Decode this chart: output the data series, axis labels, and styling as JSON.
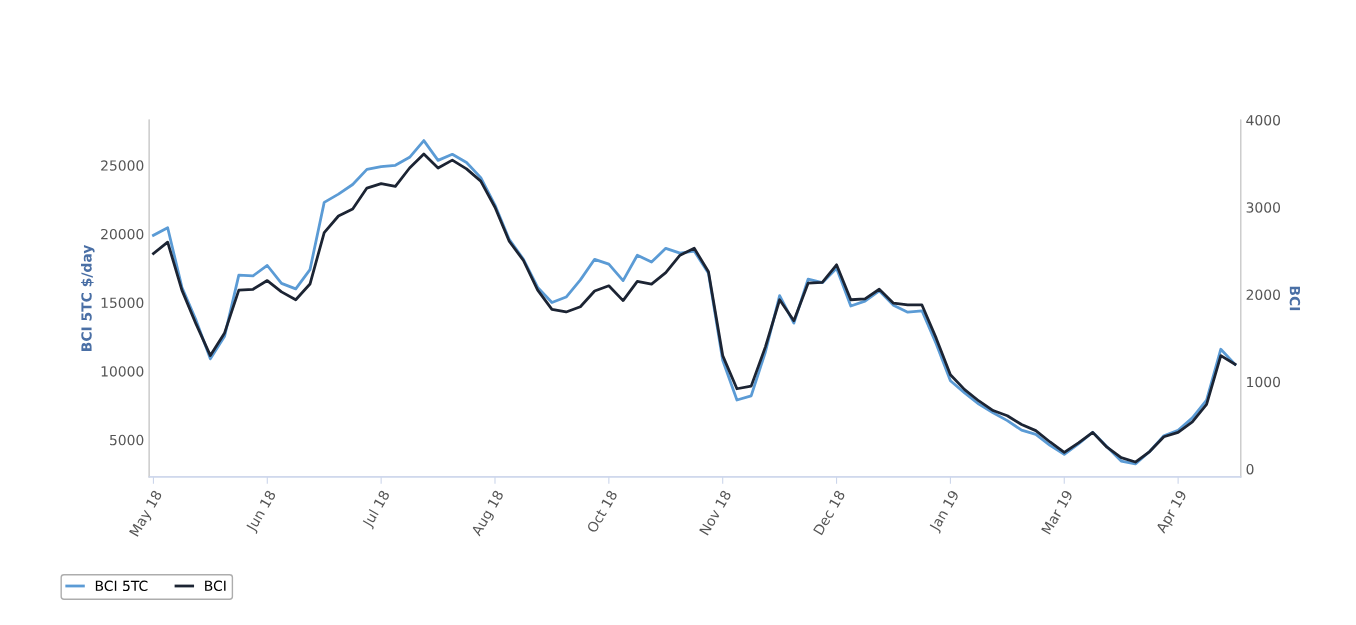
{
  "chart_data": {
    "type": "line",
    "ylabel": "BCI 5TC $/day",
    "y2label": "BCI",
    "categories": [
      "May 18",
      null,
      null,
      null,
      null,
      null,
      null,
      null,
      "Jun 18",
      null,
      null,
      null,
      null,
      null,
      null,
      null,
      "Jul 18",
      null,
      null,
      null,
      null,
      null,
      null,
      null,
      "Aug 18",
      null,
      null,
      null,
      null,
      null,
      null,
      null,
      "Oct 18",
      null,
      null,
      null,
      null,
      null,
      null,
      null,
      "Nov 18",
      null,
      null,
      null,
      null,
      null,
      null,
      null,
      "Dec 18",
      null,
      null,
      null,
      null,
      null,
      null,
      null,
      "Jan 19",
      null,
      null,
      null,
      null,
      null,
      null,
      null,
      "Mar 19",
      null,
      null,
      null,
      null,
      null,
      null,
      null,
      "Apr 19",
      null,
      null,
      null,
      null
    ],
    "ylim": [
      2300,
      28300
    ],
    "yticks": [
      5000,
      10000,
      15000,
      20000,
      25000
    ],
    "y2lim": [
      -90,
      4000
    ],
    "y2ticks": [
      0,
      1000,
      2000,
      3000,
      4000
    ],
    "grid": false,
    "legend": "bottom",
    "series": [
      {
        "name": "BCI 5TC",
        "color": "#5b9bd5",
        "values": [
          19900,
          20450,
          16120,
          13700,
          10900,
          12550,
          17000,
          16950,
          17700,
          16400,
          16000,
          17400,
          22300,
          22900,
          23600,
          24700,
          24900,
          25000,
          25580,
          26800,
          25360,
          25800,
          25200,
          24100,
          22100,
          19600,
          18150,
          16100,
          15000,
          15400,
          16650,
          18150,
          17800,
          16600,
          18450,
          17950,
          18950,
          18600,
          18750,
          17140,
          10800,
          7900,
          8200,
          11400,
          15500,
          13500,
          16700,
          16450,
          17500,
          14750,
          15100,
          15850,
          14810,
          14300,
          14400,
          12000,
          9300,
          8420,
          7600,
          6970,
          6400,
          5700,
          5400,
          4600,
          3940,
          4700,
          5550,
          4500,
          3450,
          3250,
          4150,
          5300,
          5700,
          6600,
          7900,
          11600,
          10500
        ]
      },
      {
        "name": "BCI",
        "color": "#1c2433",
        "axis": "y2",
        "values": [
          2470,
          2600,
          2050,
          1660,
          1300,
          1560,
          2050,
          2060,
          2160,
          2030,
          1940,
          2120,
          2710,
          2900,
          2980,
          3220,
          3270,
          3240,
          3450,
          3610,
          3450,
          3540,
          3440,
          3300,
          3000,
          2610,
          2390,
          2050,
          1830,
          1800,
          1860,
          2040,
          2100,
          1930,
          2150,
          2120,
          2250,
          2450,
          2530,
          2260,
          1300,
          920,
          950,
          1400,
          1940,
          1700,
          2130,
          2140,
          2340,
          1940,
          1950,
          2060,
          1900,
          1880,
          1880,
          1500,
          1080,
          910,
          780,
          670,
          610,
          510,
          440,
          310,
          190,
          300,
          420,
          250,
          130,
          80,
          200,
          370,
          420,
          540,
          740,
          1300,
          1200
        ]
      }
    ]
  }
}
